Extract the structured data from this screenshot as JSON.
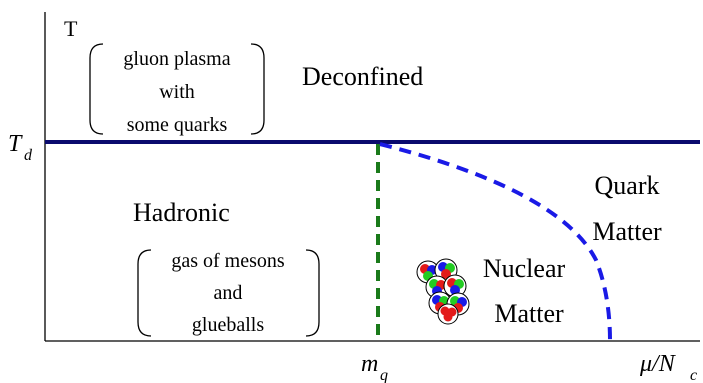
{
  "axes": {
    "y_label": "T",
    "x_label_main": "μ/N",
    "x_label_sub": "c",
    "tick_td_main": "T",
    "tick_td_sub": "d",
    "tick_mq_main": "m",
    "tick_mq_sub": "q"
  },
  "regions": {
    "deconfined": "Deconfined",
    "gluon_note": [
      "gluon plasma",
      "with",
      "some quarks"
    ],
    "hadronic": "Hadronic",
    "hadronic_note": [
      "gas of  mesons",
      "and",
      "glueballs"
    ],
    "quark_matter": [
      "Quark",
      "Matter"
    ],
    "nuclear_matter": [
      "Nuclear",
      "Matter"
    ]
  },
  "colors": {
    "deconfinement_line": "#0a0a6e",
    "quark_boundary": "#1a1ae6",
    "nuclear_boundary": "#1a7a1a",
    "nucleon_red": "#e31a1a",
    "nucleon_green": "#22cc22",
    "nucleon_blue": "#1a1ae6"
  },
  "icons": {
    "nucleus": "nucleus-cluster-icon"
  }
}
